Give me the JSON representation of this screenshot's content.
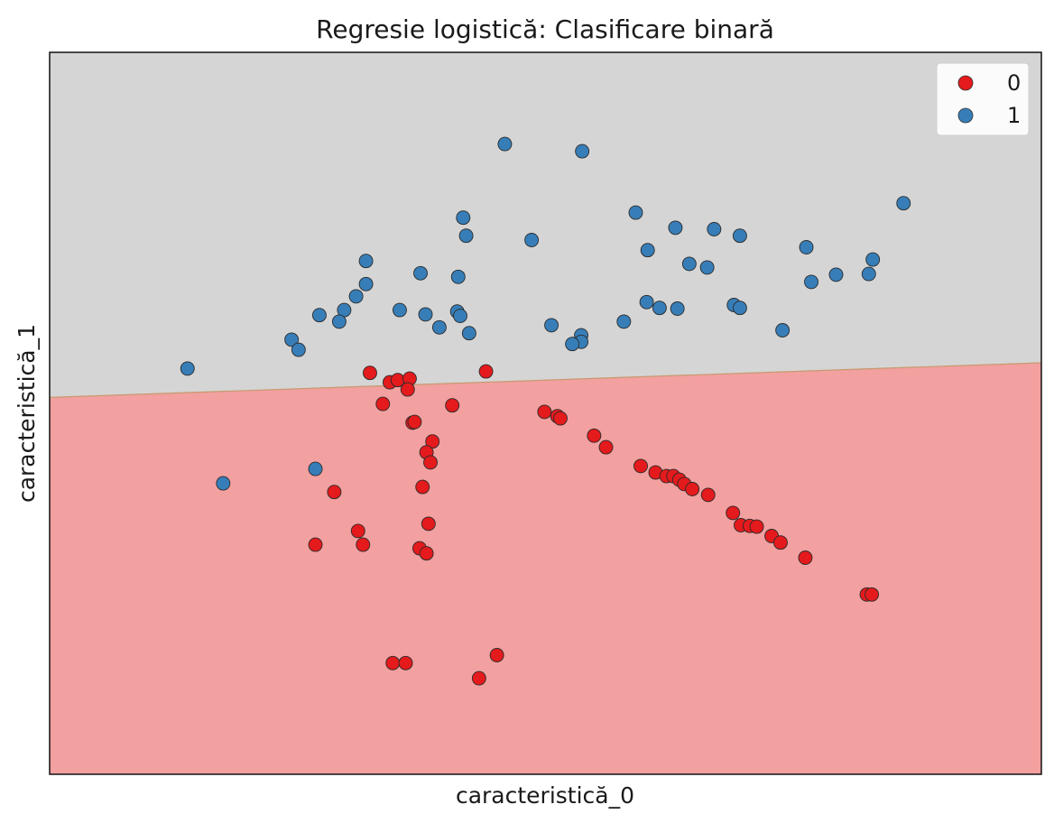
{
  "chart_data": {
    "type": "scatter",
    "title": "Regresie logistică: Clasificare binară",
    "xlabel": "caracteristică_0",
    "ylabel": "caracteristică_1",
    "xlim": [
      0,
      100
    ],
    "ylim": [
      0,
      100
    ],
    "grid": false,
    "legend_position": "top-right",
    "decision_boundary": {
      "x": [
        0,
        100
      ],
      "y": [
        52.2,
        57.0
      ]
    },
    "regions": [
      {
        "class": "1",
        "side": "above",
        "color": "#d5d5d5"
      },
      {
        "class": "0",
        "side": "below",
        "color": "#f2a0a0"
      }
    ],
    "series": [
      {
        "name": "0",
        "color": "#e41a1c",
        "points": [
          [
            32.3,
            55.6
          ],
          [
            34.3,
            54.3
          ],
          [
            35.1,
            54.6
          ],
          [
            36.3,
            54.8
          ],
          [
            36.1,
            53.3
          ],
          [
            33.6,
            51.3
          ],
          [
            36.6,
            48.7
          ],
          [
            36.8,
            48.8
          ],
          [
            44.0,
            55.8
          ],
          [
            40.6,
            51.1
          ],
          [
            38.6,
            46.1
          ],
          [
            38.0,
            44.6
          ],
          [
            38.4,
            43.2
          ],
          [
            37.6,
            39.8
          ],
          [
            49.9,
            50.2
          ],
          [
            51.2,
            49.6
          ],
          [
            51.5,
            49.3
          ],
          [
            54.9,
            46.9
          ],
          [
            56.1,
            45.3
          ],
          [
            59.6,
            42.7
          ],
          [
            61.1,
            41.8
          ],
          [
            62.2,
            41.3
          ],
          [
            62.9,
            41.3
          ],
          [
            63.5,
            40.8
          ],
          [
            64.0,
            40.2
          ],
          [
            64.8,
            39.5
          ],
          [
            66.4,
            38.7
          ],
          [
            68.9,
            36.2
          ],
          [
            69.7,
            34.5
          ],
          [
            70.6,
            34.4
          ],
          [
            71.3,
            34.3
          ],
          [
            72.8,
            33.0
          ],
          [
            73.7,
            32.1
          ],
          [
            76.2,
            30.0
          ],
          [
            82.4,
            24.9
          ],
          [
            82.9,
            24.9
          ],
          [
            28.7,
            39.1
          ],
          [
            31.1,
            33.7
          ],
          [
            38.2,
            34.7
          ],
          [
            31.6,
            31.8
          ],
          [
            37.3,
            31.3
          ],
          [
            38.0,
            30.6
          ],
          [
            26.8,
            31.8
          ],
          [
            34.6,
            15.4
          ],
          [
            35.9,
            15.4
          ],
          [
            45.1,
            16.5
          ],
          [
            43.3,
            13.3
          ]
        ]
      },
      {
        "name": "1",
        "color": "#377eb8",
        "points": [
          [
            45.9,
            87.3
          ],
          [
            53.7,
            86.3
          ],
          [
            59.1,
            77.8
          ],
          [
            63.1,
            75.7
          ],
          [
            67.0,
            75.5
          ],
          [
            69.6,
            74.6
          ],
          [
            41.7,
            77.1
          ],
          [
            42.0,
            74.6
          ],
          [
            48.6,
            74.0
          ],
          [
            60.3,
            72.6
          ],
          [
            64.5,
            70.7
          ],
          [
            66.3,
            70.2
          ],
          [
            76.3,
            73.0
          ],
          [
            76.8,
            68.2
          ],
          [
            79.3,
            69.2
          ],
          [
            82.6,
            69.3
          ],
          [
            83.0,
            71.3
          ],
          [
            86.1,
            79.1
          ],
          [
            31.9,
            71.1
          ],
          [
            31.9,
            67.9
          ],
          [
            37.4,
            69.4
          ],
          [
            41.2,
            68.9
          ],
          [
            30.9,
            66.2
          ],
          [
            29.7,
            64.3
          ],
          [
            27.2,
            63.6
          ],
          [
            35.3,
            64.3
          ],
          [
            37.9,
            63.7
          ],
          [
            41.1,
            64.1
          ],
          [
            41.4,
            63.5
          ],
          [
            39.3,
            61.9
          ],
          [
            42.3,
            61.1
          ],
          [
            50.6,
            62.2
          ],
          [
            53.6,
            60.8
          ],
          [
            53.6,
            59.9
          ],
          [
            52.7,
            59.6
          ],
          [
            57.9,
            62.7
          ],
          [
            60.2,
            65.4
          ],
          [
            61.5,
            64.6
          ],
          [
            63.3,
            64.5
          ],
          [
            69.0,
            65.0
          ],
          [
            69.6,
            64.6
          ],
          [
            73.9,
            61.5
          ],
          [
            24.4,
            60.2
          ],
          [
            29.2,
            62.7
          ],
          [
            25.1,
            58.8
          ],
          [
            13.9,
            56.2
          ],
          [
            17.5,
            40.3
          ],
          [
            26.8,
            42.3
          ]
        ]
      }
    ]
  }
}
